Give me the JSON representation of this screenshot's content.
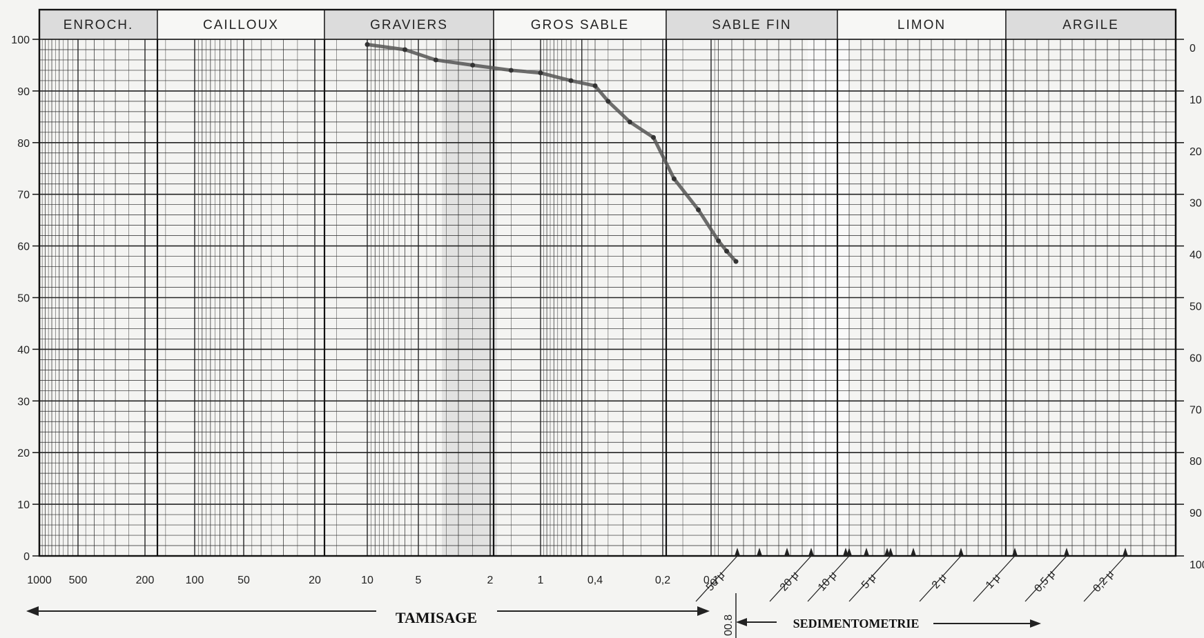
{
  "chart_data": {
    "type": "line",
    "title": "",
    "zones": [
      {
        "label": "ENROCH.",
        "from": 1000,
        "to": 200
      },
      {
        "label": "CAILLOUX",
        "from": 200,
        "to": 20
      },
      {
        "label": "GRAVIERS",
        "from": 20,
        "to": 2
      },
      {
        "label": "GROS SABLE",
        "from": 2,
        "to": 0.2
      },
      {
        "label": "SABLE FIN",
        "from": 0.2,
        "to": 0.02
      },
      {
        "label": "LIMON",
        "from": 0.02,
        "to": 0.002
      },
      {
        "label": "ARGILE",
        "from": 0.002,
        "to": 0.0002
      }
    ],
    "x_scale": "log",
    "xlim": [
      1000,
      0.0002
    ],
    "x_ticks_tamisage": [
      "1000",
      "500",
      "200",
      "100",
      "50",
      "20",
      "10",
      "5",
      "2",
      "1",
      "0,4",
      "0,2",
      "0,1"
    ],
    "x_ticks_tamisage_values": [
      1000,
      500,
      200,
      100,
      50,
      20,
      10,
      5,
      2,
      1,
      0.4,
      0.2,
      0.1
    ],
    "x_ticks_sedim": [
      "50 μ",
      "20 μ",
      "10 μ",
      "5 μ",
      "2 μ",
      "1 μ",
      "0,5 μ",
      "0,2 μ"
    ],
    "x_ticks_sedim_values": [
      0.05,
      0.02,
      0.01,
      0.005,
      0.002,
      0.001,
      0.0005,
      0.0002
    ],
    "left_ticks": [
      "100",
      "90",
      "80",
      "70",
      "60",
      "50",
      "40",
      "30",
      "20",
      "10",
      "0"
    ],
    "right_ticks": [
      "0",
      "10",
      "20",
      "30",
      "40",
      "50",
      "60",
      "70",
      "80",
      "90",
      "100"
    ],
    "ylim": [
      0,
      100
    ],
    "tamisage_label": "TAMISAGE",
    "sedimentometrie_label": "SEDIMENTOMETRIE",
    "extra_label": "00.8",
    "grid": true,
    "series": [
      {
        "points": [
          {
            "x": 10,
            "y": 99
          },
          {
            "x": 6,
            "y": 98
          },
          {
            "x": 4,
            "y": 96
          },
          {
            "x": 2.5,
            "y": 95
          },
          {
            "x": 1.5,
            "y": 94
          },
          {
            "x": 1,
            "y": 93.5
          },
          {
            "x": 0.6,
            "y": 92
          },
          {
            "x": 0.4,
            "y": 91
          },
          {
            "x": 0.35,
            "y": 88
          },
          {
            "x": 0.28,
            "y": 84
          },
          {
            "x": 0.22,
            "y": 81
          },
          {
            "x": 0.17,
            "y": 73
          },
          {
            "x": 0.12,
            "y": 67
          },
          {
            "x": 0.09,
            "y": 61
          },
          {
            "x": 0.08,
            "y": 59
          },
          {
            "x": 0.07,
            "y": 57
          }
        ]
      }
    ]
  }
}
